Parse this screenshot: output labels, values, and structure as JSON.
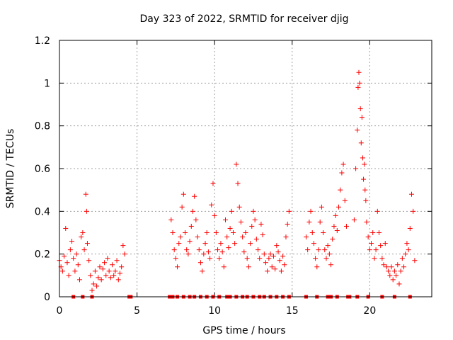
{
  "chart_data": {
    "type": "scatter",
    "title": "Day 323 of 2022, SRMTID for receiver djig",
    "xlabel": "GPS time / hours",
    "ylabel": "SRMTID / TECUs",
    "xlim": [
      0,
      24
    ],
    "ylim": [
      0,
      1.2
    ],
    "xticks": [
      0,
      5,
      10,
      15,
      20
    ],
    "xtick_labels": [
      "0",
      "5",
      "10",
      "15",
      "20"
    ],
    "yticks": [
      0,
      0.2,
      0.4,
      0.6,
      0.8,
      1.0,
      1.2
    ],
    "ytick_labels": [
      "0",
      "0.2",
      "0.4",
      "0.6",
      "0.8",
      "1",
      "1.2"
    ],
    "grid": true,
    "marker": "+",
    "marker_color": "#ff0000",
    "series": [
      {
        "name": "SRMTID",
        "points": [
          [
            0.0,
            0.17
          ],
          [
            0.1,
            0.14
          ],
          [
            0.2,
            0.12
          ],
          [
            0.3,
            0.19
          ],
          [
            0.4,
            0.32
          ],
          [
            0.5,
            0.16
          ],
          [
            0.6,
            0.1
          ],
          [
            0.7,
            0.22
          ],
          [
            0.8,
            0.26
          ],
          [
            0.9,
            0.18
          ],
          [
            1.0,
            0.12
          ],
          [
            1.1,
            0.2
          ],
          [
            1.2,
            0.15
          ],
          [
            1.3,
            0.08
          ],
          [
            1.4,
            0.28
          ],
          [
            1.5,
            0.3
          ],
          [
            1.6,
            0.22
          ],
          [
            1.7,
            0.48
          ],
          [
            1.75,
            0.4
          ],
          [
            1.8,
            0.25
          ],
          [
            1.9,
            0.17
          ],
          [
            2.0,
            0.1
          ],
          [
            2.1,
            0.03
          ],
          [
            2.2,
            0.06
          ],
          [
            2.3,
            0.12
          ],
          [
            2.4,
            0.05
          ],
          [
            2.5,
            0.09
          ],
          [
            2.6,
            0.14
          ],
          [
            2.7,
            0.08
          ],
          [
            2.8,
            0.13
          ],
          [
            2.9,
            0.16
          ],
          [
            3.0,
            0.1
          ],
          [
            3.1,
            0.18
          ],
          [
            3.2,
            0.12
          ],
          [
            3.3,
            0.09
          ],
          [
            3.4,
            0.15
          ],
          [
            3.5,
            0.1
          ],
          [
            3.6,
            0.12
          ],
          [
            3.7,
            0.17
          ],
          [
            3.8,
            0.08
          ],
          [
            3.9,
            0.11
          ],
          [
            4.0,
            0.14
          ],
          [
            4.1,
            0.24
          ],
          [
            4.2,
            0.2
          ],
          [
            7.2,
            0.36
          ],
          [
            7.3,
            0.3
          ],
          [
            7.4,
            0.22
          ],
          [
            7.5,
            0.18
          ],
          [
            7.6,
            0.14
          ],
          [
            7.7,
            0.25
          ],
          [
            7.8,
            0.28
          ],
          [
            7.9,
            0.42
          ],
          [
            8.0,
            0.48
          ],
          [
            8.1,
            0.3
          ],
          [
            8.2,
            0.22
          ],
          [
            8.3,
            0.2
          ],
          [
            8.4,
            0.26
          ],
          [
            8.5,
            0.33
          ],
          [
            8.6,
            0.4
          ],
          [
            8.7,
            0.47
          ],
          [
            8.8,
            0.36
          ],
          [
            8.9,
            0.28
          ],
          [
            9.0,
            0.22
          ],
          [
            9.1,
            0.16
          ],
          [
            9.2,
            0.12
          ],
          [
            9.3,
            0.2
          ],
          [
            9.4,
            0.25
          ],
          [
            9.5,
            0.3
          ],
          [
            9.6,
            0.21
          ],
          [
            9.7,
            0.18
          ],
          [
            9.8,
            0.43
          ],
          [
            9.9,
            0.53
          ],
          [
            10.0,
            0.38
          ],
          [
            10.1,
            0.3
          ],
          [
            10.2,
            0.22
          ],
          [
            10.3,
            0.18
          ],
          [
            10.4,
            0.25
          ],
          [
            10.5,
            0.21
          ],
          [
            10.6,
            0.14
          ],
          [
            10.7,
            0.36
          ],
          [
            10.8,
            0.28
          ],
          [
            10.9,
            0.23
          ],
          [
            11.0,
            0.32
          ],
          [
            11.1,
            0.4
          ],
          [
            11.2,
            0.3
          ],
          [
            11.3,
            0.25
          ],
          [
            11.4,
            0.62
          ],
          [
            11.5,
            0.53
          ],
          [
            11.6,
            0.42
          ],
          [
            11.7,
            0.35
          ],
          [
            11.8,
            0.28
          ],
          [
            11.9,
            0.21
          ],
          [
            12.0,
            0.3
          ],
          [
            12.1,
            0.18
          ],
          [
            12.2,
            0.14
          ],
          [
            12.3,
            0.25
          ],
          [
            12.4,
            0.33
          ],
          [
            12.5,
            0.4
          ],
          [
            12.6,
            0.36
          ],
          [
            12.7,
            0.27
          ],
          [
            12.8,
            0.22
          ],
          [
            12.9,
            0.18
          ],
          [
            13.0,
            0.34
          ],
          [
            13.1,
            0.29
          ],
          [
            13.2,
            0.2
          ],
          [
            13.3,
            0.16
          ],
          [
            13.4,
            0.12
          ],
          [
            13.5,
            0.18
          ],
          [
            13.6,
            0.2
          ],
          [
            13.7,
            0.14
          ],
          [
            13.8,
            0.19
          ],
          [
            13.9,
            0.13
          ],
          [
            14.0,
            0.24
          ],
          [
            14.1,
            0.21
          ],
          [
            14.2,
            0.17
          ],
          [
            14.3,
            0.12
          ],
          [
            14.4,
            0.19
          ],
          [
            14.5,
            0.15
          ],
          [
            14.6,
            0.28
          ],
          [
            14.7,
            0.34
          ],
          [
            14.8,
            0.4
          ],
          [
            15.9,
            0.28
          ],
          [
            16.0,
            0.22
          ],
          [
            16.1,
            0.35
          ],
          [
            16.2,
            0.4
          ],
          [
            16.3,
            0.3
          ],
          [
            16.4,
            0.25
          ],
          [
            16.5,
            0.18
          ],
          [
            16.6,
            0.14
          ],
          [
            16.7,
            0.22
          ],
          [
            16.8,
            0.35
          ],
          [
            16.9,
            0.42
          ],
          [
            17.0,
            0.3
          ],
          [
            17.1,
            0.22
          ],
          [
            17.2,
            0.18
          ],
          [
            17.3,
            0.24
          ],
          [
            17.4,
            0.2
          ],
          [
            17.5,
            0.15
          ],
          [
            17.6,
            0.27
          ],
          [
            17.7,
            0.33
          ],
          [
            17.8,
            0.38
          ],
          [
            17.9,
            0.31
          ],
          [
            18.0,
            0.42
          ],
          [
            18.1,
            0.5
          ],
          [
            18.2,
            0.58
          ],
          [
            18.3,
            0.62
          ],
          [
            18.4,
            0.45
          ],
          [
            18.5,
            0.33
          ],
          [
            19.0,
            0.36
          ],
          [
            19.1,
            0.6
          ],
          [
            19.2,
            0.78
          ],
          [
            19.25,
            0.98
          ],
          [
            19.3,
            1.05
          ],
          [
            19.35,
            1.0
          ],
          [
            19.4,
            0.88
          ],
          [
            19.45,
            0.72
          ],
          [
            19.5,
            0.84
          ],
          [
            19.55,
            0.65
          ],
          [
            19.6,
            0.55
          ],
          [
            19.65,
            0.62
          ],
          [
            19.7,
            0.5
          ],
          [
            19.75,
            0.45
          ],
          [
            19.8,
            0.35
          ],
          [
            19.9,
            0.28
          ],
          [
            20.0,
            0.22
          ],
          [
            20.1,
            0.25
          ],
          [
            20.2,
            0.3
          ],
          [
            20.3,
            0.18
          ],
          [
            20.4,
            0.22
          ],
          [
            20.5,
            0.4
          ],
          [
            20.6,
            0.3
          ],
          [
            20.7,
            0.24
          ],
          [
            20.8,
            0.18
          ],
          [
            20.9,
            0.15
          ],
          [
            21.0,
            0.25
          ],
          [
            21.1,
            0.14
          ],
          [
            21.2,
            0.12
          ],
          [
            21.3,
            0.1
          ],
          [
            21.4,
            0.14
          ],
          [
            21.5,
            0.08
          ],
          [
            21.6,
            0.12
          ],
          [
            21.7,
            0.1
          ],
          [
            21.8,
            0.15
          ],
          [
            21.9,
            0.06
          ],
          [
            22.0,
            0.12
          ],
          [
            22.1,
            0.18
          ],
          [
            22.2,
            0.14
          ],
          [
            22.3,
            0.2
          ],
          [
            22.4,
            0.25
          ],
          [
            22.5,
            0.22
          ],
          [
            22.6,
            0.32
          ],
          [
            22.7,
            0.48
          ],
          [
            22.8,
            0.4
          ],
          [
            22.9,
            0.17
          ]
        ]
      }
    ],
    "zero_markers_x": [
      0.9,
      1.5,
      2.1,
      4.5,
      4.6,
      7.1,
      7.3,
      7.6,
      8.0,
      8.4,
      8.7,
      9.1,
      9.5,
      9.9,
      10.3,
      10.8,
      11.0,
      11.4,
      11.8,
      12.1,
      12.5,
      12.9,
      13.2,
      13.6,
      14.0,
      14.4,
      14.8,
      15.9,
      16.6,
      17.3,
      17.5,
      17.9,
      18.6,
      18.7,
      19.2,
      19.9,
      20.8,
      21.6,
      22.6
    ]
  }
}
